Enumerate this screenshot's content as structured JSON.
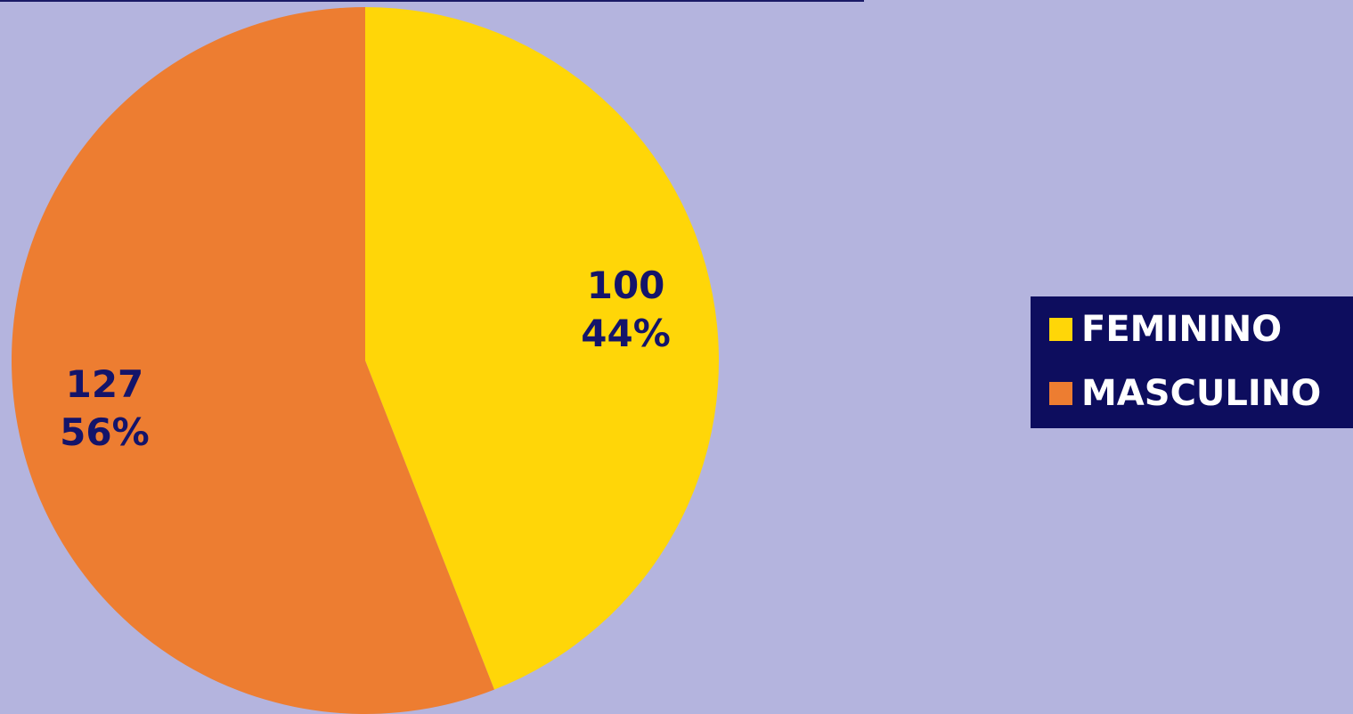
{
  "chart_data": {
    "type": "pie",
    "categories": [
      "FEMININO",
      "MASCULINO"
    ],
    "values": [
      100,
      127
    ],
    "percent_labels": [
      "44%",
      "56%"
    ],
    "colors": [
      "#ffd608",
      "#ed7d31"
    ],
    "legend": "right"
  }
}
